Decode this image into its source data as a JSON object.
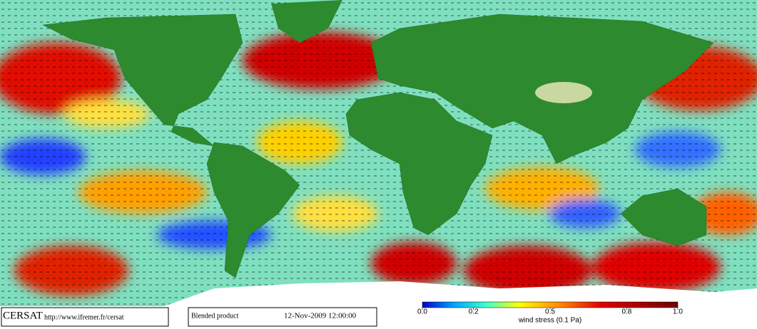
{
  "footer": {
    "logo": "CERSAT",
    "url": "http://www.ifremer.fr/cersat",
    "product": "Blended product",
    "date": "12-Nov-2009 12:00:00"
  },
  "colorbar": {
    "label": "wind stress (0.1 Pa)",
    "range": [
      0,
      1
    ],
    "ticks": [
      {
        "value": 0,
        "label": "0.0"
      },
      0.2,
      0.5,
      0.8,
      {
        "value": 1,
        "label": "1.0"
      }
    ]
  }
}
